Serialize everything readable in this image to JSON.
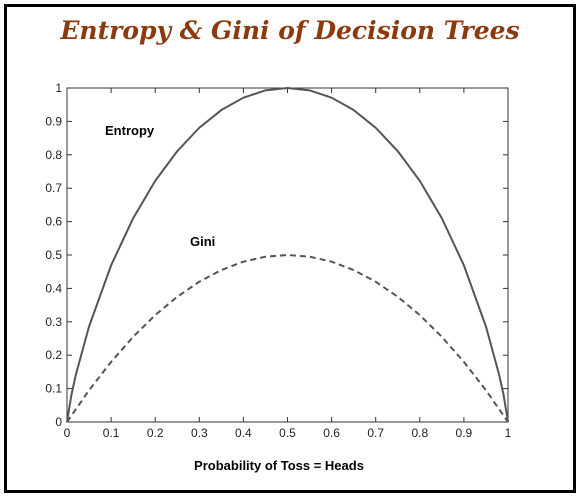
{
  "colors": {
    "title": "#8b3a0e",
    "curve": "#555555",
    "axis": "#333333"
  },
  "chart_data": {
    "type": "line",
    "title": "Entropy & Gini of Decision Trees",
    "xlabel": "Probability of Toss = Heads",
    "ylabel": "",
    "xlim": [
      0,
      1
    ],
    "ylim": [
      0,
      1
    ],
    "grid": false,
    "xticks": [
      "0",
      "0.1",
      "0.2",
      "0.3",
      "0.4",
      "0.5",
      "0.6",
      "0.7",
      "0.8",
      "0.9",
      "1"
    ],
    "yticks": [
      "0",
      "0.1",
      "0.2",
      "0.3",
      "0.4",
      "0.5",
      "0.6",
      "0.7",
      "0.8",
      "0.9",
      "1"
    ],
    "series": [
      {
        "name": "Entropy",
        "style": "solid",
        "x": [
          0,
          0.01,
          0.02,
          0.05,
          0.1,
          0.15,
          0.2,
          0.25,
          0.3,
          0.35,
          0.4,
          0.45,
          0.5,
          0.55,
          0.6,
          0.65,
          0.7,
          0.75,
          0.8,
          0.85,
          0.9,
          0.95,
          0.98,
          0.99,
          1
        ],
        "y": [
          0,
          0.081,
          0.141,
          0.286,
          0.469,
          0.61,
          0.722,
          0.811,
          0.881,
          0.934,
          0.971,
          0.993,
          1,
          0.993,
          0.971,
          0.934,
          0.881,
          0.811,
          0.722,
          0.61,
          0.469,
          0.286,
          0.141,
          0.081,
          0
        ]
      },
      {
        "name": "Gini",
        "style": "dashed",
        "x": [
          0,
          0.05,
          0.1,
          0.15,
          0.2,
          0.25,
          0.3,
          0.35,
          0.4,
          0.45,
          0.5,
          0.55,
          0.6,
          0.65,
          0.7,
          0.75,
          0.8,
          0.85,
          0.9,
          0.95,
          1
        ],
        "y": [
          0,
          0.095,
          0.18,
          0.255,
          0.32,
          0.375,
          0.42,
          0.455,
          0.48,
          0.495,
          0.5,
          0.495,
          0.48,
          0.455,
          0.42,
          0.375,
          0.32,
          0.255,
          0.18,
          0.095,
          0
        ]
      }
    ]
  }
}
